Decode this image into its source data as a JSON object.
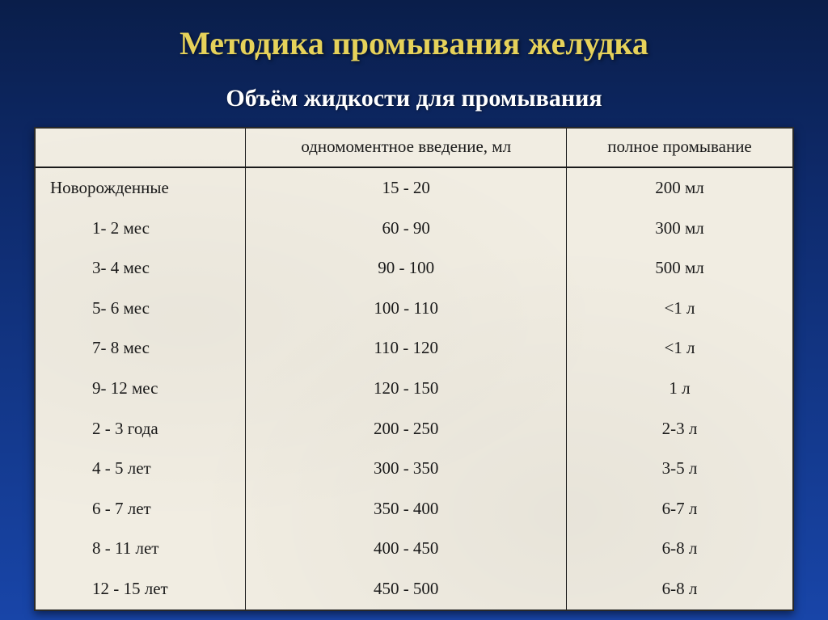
{
  "title": "Методика промывания желудка",
  "subtitle": "Объём жидкости для промывания",
  "table": {
    "columns": [
      "",
      "одномоментное введение, мл",
      "полное промывание"
    ],
    "rows": [
      {
        "age": "Новорожденные",
        "single": "15 - 20",
        "full": "200 мл",
        "first": true
      },
      {
        "age": "1- 2 мес",
        "single": "60 - 90",
        "full": "300 мл"
      },
      {
        "age": "3- 4 мес",
        "single": "90 - 100",
        "full": "500 мл"
      },
      {
        "age": "5- 6 мес",
        "single": "100 - 110",
        "full": "<1 л"
      },
      {
        "age": "7- 8 мес",
        "single": "110 - 120",
        "full": "<1 л"
      },
      {
        "age": "9- 12 мес",
        "single": "120 - 150",
        "full": "1 л"
      },
      {
        "age": "2 - 3 года",
        "single": "200 - 250",
        "full": "2-3 л"
      },
      {
        "age": "4 - 5 лет",
        "single": "300 - 350",
        "full": "3-5 л"
      },
      {
        "age": "6 - 7 лет",
        "single": "350 - 400",
        "full": "6-7 л"
      },
      {
        "age": "8 - 11 лет",
        "single": "400 - 450",
        "full": "6-8 л"
      },
      {
        "age": "12 - 15 лет",
        "single": "450 - 500",
        "full": "6-8 л"
      }
    ]
  },
  "colors": {
    "title": "#e6d25a",
    "subtitle": "#ffffff",
    "bg_top": "#0a1e4a",
    "bg_bottom": "#1845a8",
    "paper": "#f1ede2",
    "ink": "#1a1a1a"
  },
  "fonts": {
    "title_size": 40,
    "subtitle_size": 30,
    "table_size": 21
  }
}
